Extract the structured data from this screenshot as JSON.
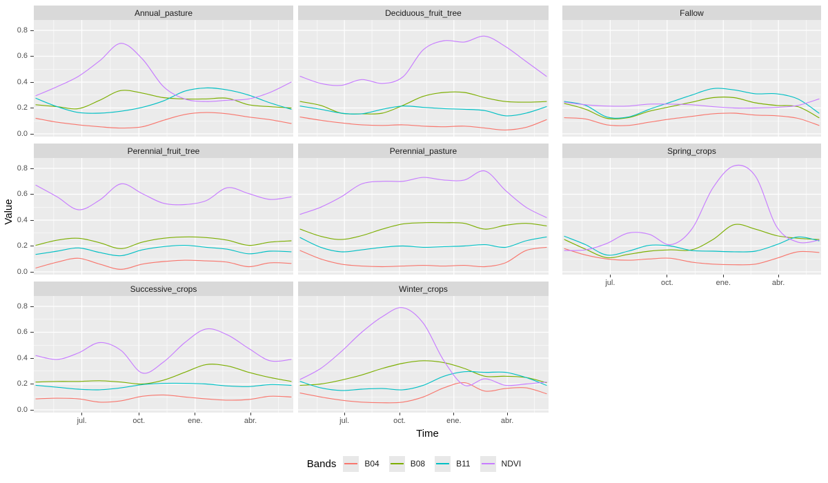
{
  "chart_data": {
    "type": "line",
    "title": "",
    "xlabel": "Time",
    "ylabel": "Value",
    "legend_title": "Bands",
    "legend_position": "bottom",
    "grid": "white major and minor gridlines on gray panel",
    "x_tick_labels": [
      "jul.",
      "oct.",
      "ene.",
      "abr."
    ],
    "x_tick_positions": [
      0.185,
      0.405,
      0.622,
      0.835
    ],
    "y_ticks": [
      "0.0",
      "0.2",
      "0.4",
      "0.6",
      "0.8"
    ],
    "y_tick_values": [
      0,
      0.2,
      0.4,
      0.6,
      0.8
    ],
    "ylim": [
      -0.02,
      0.875
    ],
    "x_sample_count": 13,
    "x_sample_note": "13 evenly spaced samples across one year (approx. may to may)",
    "series": [
      {
        "name": "B04",
        "color": "#F8766D"
      },
      {
        "name": "B08",
        "color": "#7CAE00"
      },
      {
        "name": "B11",
        "color": "#00BFC4"
      },
      {
        "name": "NDVI",
        "color": "#C77CFF"
      }
    ],
    "facet_grid": {
      "columns": 3,
      "rows": 3,
      "panels": 8,
      "empty_cells": [
        "row3-col3"
      ]
    },
    "facets": [
      {
        "title": "Annual_pasture",
        "values": {
          "B04": [
            0.12,
            0.09,
            0.07,
            0.055,
            0.045,
            0.055,
            0.105,
            0.15,
            0.165,
            0.155,
            0.13,
            0.11,
            0.08
          ],
          "B08": [
            0.225,
            0.21,
            0.195,
            0.26,
            0.335,
            0.315,
            0.28,
            0.27,
            0.27,
            0.275,
            0.225,
            0.21,
            0.2
          ],
          "B11": [
            0.275,
            0.21,
            0.165,
            0.16,
            0.175,
            0.205,
            0.255,
            0.33,
            0.355,
            0.34,
            0.3,
            0.24,
            0.19
          ],
          "NDVI": [
            0.295,
            0.365,
            0.445,
            0.565,
            0.7,
            0.58,
            0.365,
            0.27,
            0.25,
            0.26,
            0.27,
            0.32,
            0.4
          ]
        }
      },
      {
        "title": "Deciduous_fruit_tree",
        "values": {
          "B04": [
            0.13,
            0.105,
            0.085,
            0.07,
            0.065,
            0.07,
            0.06,
            0.055,
            0.06,
            0.045,
            0.03,
            0.05,
            0.11
          ],
          "B08": [
            0.25,
            0.22,
            0.16,
            0.155,
            0.16,
            0.22,
            0.29,
            0.32,
            0.32,
            0.28,
            0.25,
            0.245,
            0.25
          ],
          "B11": [
            0.215,
            0.19,
            0.16,
            0.155,
            0.19,
            0.215,
            0.205,
            0.195,
            0.19,
            0.18,
            0.14,
            0.16,
            0.21
          ],
          "NDVI": [
            0.445,
            0.39,
            0.375,
            0.42,
            0.39,
            0.44,
            0.65,
            0.72,
            0.71,
            0.755,
            0.675,
            0.56,
            0.445
          ]
        }
      },
      {
        "title": "Fallow",
        "values": {
          "B04": [
            0.125,
            0.115,
            0.07,
            0.065,
            0.09,
            0.115,
            0.135,
            0.155,
            0.16,
            0.145,
            0.14,
            0.12,
            0.065
          ],
          "B08": [
            0.235,
            0.19,
            0.12,
            0.125,
            0.175,
            0.21,
            0.245,
            0.28,
            0.28,
            0.24,
            0.22,
            0.21,
            0.125
          ],
          "B11": [
            0.25,
            0.22,
            0.13,
            0.13,
            0.19,
            0.245,
            0.3,
            0.35,
            0.34,
            0.31,
            0.31,
            0.27,
            0.16
          ],
          "NDVI": [
            0.245,
            0.225,
            0.215,
            0.215,
            0.23,
            0.23,
            0.225,
            0.21,
            0.2,
            0.2,
            0.205,
            0.22,
            0.27
          ]
        }
      },
      {
        "title": "Perennial_fruit_tree",
        "values": {
          "B04": [
            0.03,
            0.075,
            0.105,
            0.06,
            0.02,
            0.06,
            0.08,
            0.09,
            0.085,
            0.075,
            0.04,
            0.07,
            0.065
          ],
          "B08": [
            0.205,
            0.245,
            0.26,
            0.225,
            0.18,
            0.23,
            0.26,
            0.27,
            0.265,
            0.245,
            0.205,
            0.23,
            0.24
          ],
          "B11": [
            0.135,
            0.16,
            0.185,
            0.15,
            0.125,
            0.17,
            0.195,
            0.205,
            0.19,
            0.175,
            0.14,
            0.16,
            0.155
          ],
          "NDVI": [
            0.67,
            0.58,
            0.48,
            0.555,
            0.68,
            0.605,
            0.53,
            0.52,
            0.55,
            0.65,
            0.605,
            0.56,
            0.58
          ]
        }
      },
      {
        "title": "Perennial_pasture",
        "values": {
          "B04": [
            0.165,
            0.1,
            0.06,
            0.045,
            0.04,
            0.045,
            0.05,
            0.045,
            0.05,
            0.04,
            0.07,
            0.165,
            0.19
          ],
          "B08": [
            0.33,
            0.275,
            0.25,
            0.28,
            0.33,
            0.37,
            0.38,
            0.38,
            0.375,
            0.33,
            0.36,
            0.375,
            0.355
          ],
          "B11": [
            0.265,
            0.19,
            0.155,
            0.17,
            0.19,
            0.2,
            0.19,
            0.195,
            0.2,
            0.21,
            0.19,
            0.24,
            0.27
          ],
          "NDVI": [
            0.445,
            0.5,
            0.58,
            0.68,
            0.7,
            0.7,
            0.73,
            0.71,
            0.71,
            0.78,
            0.63,
            0.5,
            0.42
          ]
        }
      },
      {
        "title": "Spring_crops",
        "values": {
          "B04": [
            0.18,
            0.13,
            0.1,
            0.09,
            0.1,
            0.105,
            0.075,
            0.06,
            0.055,
            0.06,
            0.105,
            0.155,
            0.15
          ],
          "B08": [
            0.25,
            0.175,
            0.11,
            0.135,
            0.16,
            0.17,
            0.17,
            0.25,
            0.365,
            0.33,
            0.28,
            0.26,
            0.25
          ],
          "B11": [
            0.275,
            0.21,
            0.13,
            0.16,
            0.205,
            0.2,
            0.165,
            0.16,
            0.155,
            0.16,
            0.21,
            0.27,
            0.24
          ],
          "NDVI": [
            0.165,
            0.17,
            0.22,
            0.3,
            0.29,
            0.21,
            0.33,
            0.65,
            0.82,
            0.74,
            0.35,
            0.23,
            0.245
          ]
        }
      },
      {
        "title": "Successive_crops",
        "values": {
          "B04": [
            0.085,
            0.09,
            0.085,
            0.06,
            0.07,
            0.105,
            0.115,
            0.1,
            0.085,
            0.075,
            0.08,
            0.105,
            0.1
          ],
          "B08": [
            0.215,
            0.22,
            0.22,
            0.225,
            0.215,
            0.2,
            0.23,
            0.29,
            0.35,
            0.34,
            0.29,
            0.25,
            0.22
          ],
          "B11": [
            0.19,
            0.175,
            0.16,
            0.155,
            0.17,
            0.195,
            0.205,
            0.205,
            0.2,
            0.185,
            0.18,
            0.195,
            0.19
          ],
          "NDVI": [
            0.42,
            0.39,
            0.44,
            0.52,
            0.46,
            0.285,
            0.37,
            0.52,
            0.625,
            0.58,
            0.475,
            0.38,
            0.39
          ]
        }
      },
      {
        "title": "Winter_crops",
        "values": {
          "B04": [
            0.13,
            0.1,
            0.075,
            0.06,
            0.055,
            0.06,
            0.1,
            0.17,
            0.21,
            0.145,
            0.165,
            0.17,
            0.125
          ],
          "B08": [
            0.19,
            0.2,
            0.23,
            0.27,
            0.32,
            0.36,
            0.38,
            0.365,
            0.32,
            0.26,
            0.26,
            0.25,
            0.21
          ],
          "B11": [
            0.22,
            0.17,
            0.15,
            0.16,
            0.165,
            0.155,
            0.19,
            0.26,
            0.295,
            0.29,
            0.29,
            0.25,
            0.19
          ],
          "NDVI": [
            0.235,
            0.32,
            0.45,
            0.6,
            0.72,
            0.79,
            0.67,
            0.38,
            0.19,
            0.24,
            0.19,
            0.2,
            0.215
          ]
        }
      }
    ]
  },
  "theme": {
    "panel_background": "#EBEBEB",
    "strip_background": "#D9D9D9",
    "grid_color": "#FFFFFF",
    "tick_color": "#333333",
    "axis_text_color": "#4D4D4D",
    "strip_text_color": "#1A1A1A",
    "legend_key_background": "#E8E8E8"
  }
}
